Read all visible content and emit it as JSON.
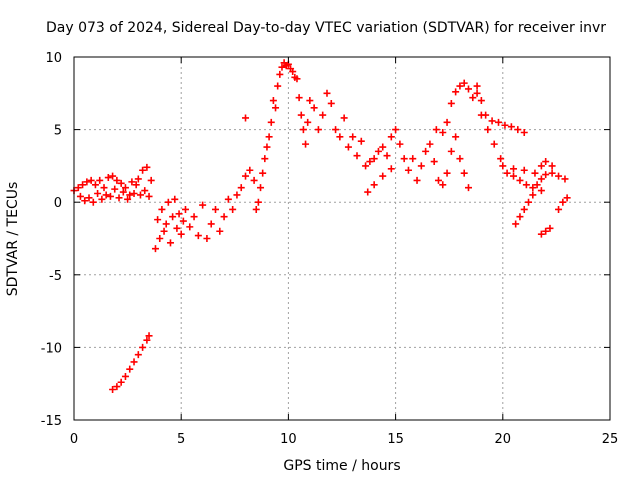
{
  "chart_data": {
    "type": "scatter",
    "title": "Day 073 of 2024, Sidereal Day-to-day VTEC variation (SDTVAR) for receiver invr",
    "xlabel": "GPS time / hours",
    "ylabel": "SDTVAR / TECUs",
    "xlim": [
      0,
      25
    ],
    "ylim": [
      -15,
      10
    ],
    "xticks": [
      0,
      5,
      10,
      15,
      20,
      25
    ],
    "yticks": [
      -15,
      -10,
      -5,
      0,
      5,
      10
    ],
    "xtick_labels": [
      "0",
      "5",
      "10",
      "15",
      "20",
      "25"
    ],
    "ytick_labels": [
      "-15",
      "-10",
      "-5",
      "0",
      "5",
      "10"
    ],
    "grid": true,
    "marker": "+",
    "series": [
      {
        "name": "SDTVAR",
        "color": "#ff0000",
        "points": [
          [
            0.0,
            0.8
          ],
          [
            0.2,
            1.0
          ],
          [
            0.3,
            0.4
          ],
          [
            0.4,
            1.2
          ],
          [
            0.5,
            0.1
          ],
          [
            0.6,
            1.4
          ],
          [
            0.7,
            0.3
          ],
          [
            0.8,
            1.5
          ],
          [
            0.9,
            0.0
          ],
          [
            1.0,
            1.2
          ],
          [
            1.1,
            0.6
          ],
          [
            1.2,
            1.5
          ],
          [
            1.3,
            0.2
          ],
          [
            1.4,
            1.0
          ],
          [
            1.5,
            0.5
          ],
          [
            1.6,
            1.7
          ],
          [
            1.7,
            0.4
          ],
          [
            1.8,
            1.8
          ],
          [
            1.9,
            0.9
          ],
          [
            2.0,
            1.5
          ],
          [
            2.1,
            0.3
          ],
          [
            2.2,
            1.3
          ],
          [
            2.3,
            0.7
          ],
          [
            2.4,
            1.0
          ],
          [
            2.5,
            0.2
          ],
          [
            2.6,
            0.5
          ],
          [
            2.7,
            1.4
          ],
          [
            2.8,
            0.6
          ],
          [
            2.9,
            1.2
          ],
          [
            3.0,
            1.6
          ],
          [
            3.1,
            0.5
          ],
          [
            3.2,
            2.2
          ],
          [
            3.3,
            0.8
          ],
          [
            3.4,
            2.4
          ],
          [
            3.5,
            0.4
          ],
          [
            3.6,
            1.5
          ],
          [
            1.8,
            -12.9
          ],
          [
            2.0,
            -12.7
          ],
          [
            2.2,
            -12.4
          ],
          [
            2.4,
            -12.0
          ],
          [
            2.6,
            -11.5
          ],
          [
            2.8,
            -11.0
          ],
          [
            3.0,
            -10.5
          ],
          [
            3.2,
            -10.0
          ],
          [
            3.4,
            -9.5
          ],
          [
            3.5,
            -9.2
          ],
          [
            3.8,
            -3.2
          ],
          [
            3.9,
            -1.2
          ],
          [
            4.0,
            -2.5
          ],
          [
            4.1,
            -0.5
          ],
          [
            4.2,
            -2.0
          ],
          [
            4.3,
            -1.5
          ],
          [
            4.4,
            0.0
          ],
          [
            4.5,
            -2.8
          ],
          [
            4.6,
            -1.0
          ],
          [
            4.7,
            0.2
          ],
          [
            4.8,
            -1.8
          ],
          [
            4.9,
            -0.8
          ],
          [
            5.0,
            -2.2
          ],
          [
            5.1,
            -1.3
          ],
          [
            5.2,
            -0.5
          ],
          [
            5.4,
            -1.7
          ],
          [
            5.6,
            -1.0
          ],
          [
            5.8,
            -2.3
          ],
          [
            6.0,
            -0.2
          ],
          [
            6.2,
            -2.5
          ],
          [
            6.4,
            -1.5
          ],
          [
            6.6,
            -0.5
          ],
          [
            6.8,
            -2.0
          ],
          [
            7.0,
            -1.0
          ],
          [
            7.2,
            0.2
          ],
          [
            7.4,
            -0.5
          ],
          [
            7.6,
            0.5
          ],
          [
            7.8,
            1.0
          ],
          [
            8.0,
            1.8
          ],
          [
            8.2,
            2.2
          ],
          [
            8.4,
            1.5
          ],
          [
            8.5,
            -0.5
          ],
          [
            8.6,
            0.0
          ],
          [
            8.7,
            1.0
          ],
          [
            8.8,
            2.0
          ],
          [
            8.9,
            3.0
          ],
          [
            9.0,
            3.8
          ],
          [
            9.1,
            4.5
          ],
          [
            9.2,
            5.5
          ],
          [
            9.3,
            7.0
          ],
          [
            9.4,
            6.5
          ],
          [
            8.0,
            5.8
          ],
          [
            9.5,
            8.0
          ],
          [
            9.6,
            8.8
          ],
          [
            9.7,
            9.3
          ],
          [
            9.8,
            9.6
          ],
          [
            9.9,
            9.4
          ],
          [
            10.0,
            9.5
          ],
          [
            10.1,
            9.2
          ],
          [
            10.2,
            9.0
          ],
          [
            10.3,
            8.6
          ],
          [
            10.4,
            8.5
          ],
          [
            10.5,
            7.2
          ],
          [
            10.6,
            6.0
          ],
          [
            10.7,
            5.0
          ],
          [
            10.8,
            4.0
          ],
          [
            10.9,
            5.5
          ],
          [
            11.0,
            7.0
          ],
          [
            11.2,
            6.5
          ],
          [
            11.4,
            5.0
          ],
          [
            11.6,
            6.0
          ],
          [
            11.8,
            7.5
          ],
          [
            12.0,
            6.8
          ],
          [
            12.2,
            5.0
          ],
          [
            12.4,
            4.5
          ],
          [
            12.6,
            5.8
          ],
          [
            12.8,
            3.8
          ],
          [
            13.0,
            4.5
          ],
          [
            13.2,
            3.2
          ],
          [
            13.4,
            4.2
          ],
          [
            13.6,
            2.5
          ],
          [
            13.8,
            2.8
          ],
          [
            14.0,
            3.0
          ],
          [
            14.2,
            3.5
          ],
          [
            14.4,
            3.8
          ],
          [
            14.6,
            3.2
          ],
          [
            14.8,
            4.5
          ],
          [
            15.0,
            5.0
          ],
          [
            13.7,
            0.7
          ],
          [
            14.0,
            1.2
          ],
          [
            14.4,
            1.8
          ],
          [
            14.8,
            2.3
          ],
          [
            15.2,
            4.0
          ],
          [
            15.4,
            3.0
          ],
          [
            15.6,
            2.2
          ],
          [
            15.8,
            3.0
          ],
          [
            16.0,
            1.5
          ],
          [
            16.2,
            2.5
          ],
          [
            16.4,
            3.5
          ],
          [
            16.6,
            4.0
          ],
          [
            16.8,
            2.8
          ],
          [
            17.0,
            1.5
          ],
          [
            17.2,
            1.2
          ],
          [
            17.4,
            2.0
          ],
          [
            17.6,
            3.5
          ],
          [
            17.8,
            4.5
          ],
          [
            18.0,
            3.0
          ],
          [
            18.2,
            2.0
          ],
          [
            18.4,
            1.0
          ],
          [
            16.9,
            5.0
          ],
          [
            17.2,
            4.8
          ],
          [
            17.4,
            5.5
          ],
          [
            17.6,
            6.8
          ],
          [
            17.8,
            7.6
          ],
          [
            18.0,
            8.0
          ],
          [
            18.2,
            8.2
          ],
          [
            18.4,
            7.8
          ],
          [
            18.6,
            7.2
          ],
          [
            18.8,
            8.0
          ],
          [
            19.0,
            7.0
          ],
          [
            19.2,
            6.0
          ],
          [
            19.5,
            5.6
          ],
          [
            19.8,
            5.5
          ],
          [
            20.1,
            5.3
          ],
          [
            20.4,
            5.2
          ],
          [
            20.7,
            5.0
          ],
          [
            21.0,
            4.8
          ],
          [
            18.8,
            7.5
          ],
          [
            19.0,
            6.0
          ],
          [
            19.3,
            5.0
          ],
          [
            19.6,
            4.0
          ],
          [
            19.9,
            3.0
          ],
          [
            20.2,
            2.0
          ],
          [
            20.5,
            1.8
          ],
          [
            20.8,
            1.5
          ],
          [
            21.1,
            1.2
          ],
          [
            21.4,
            1.0
          ],
          [
            21.8,
            0.8
          ],
          [
            20.0,
            2.5
          ],
          [
            20.5,
            2.3
          ],
          [
            21.0,
            2.2
          ],
          [
            21.5,
            2.0
          ],
          [
            21.8,
            2.5
          ],
          [
            22.0,
            2.8
          ],
          [
            22.3,
            2.5
          ],
          [
            20.6,
            -1.5
          ],
          [
            20.8,
            -1.0
          ],
          [
            21.0,
            -0.5
          ],
          [
            21.2,
            0.0
          ],
          [
            21.4,
            0.5
          ],
          [
            21.6,
            1.2
          ],
          [
            21.8,
            1.6
          ],
          [
            22.0,
            1.9
          ],
          [
            22.3,
            2.0
          ],
          [
            22.6,
            1.8
          ],
          [
            22.9,
            1.6
          ],
          [
            21.8,
            -2.2
          ],
          [
            22.0,
            -2.0
          ],
          [
            22.2,
            -1.8
          ],
          [
            22.6,
            -0.5
          ],
          [
            22.8,
            0.0
          ],
          [
            23.0,
            0.3
          ]
        ]
      }
    ]
  }
}
